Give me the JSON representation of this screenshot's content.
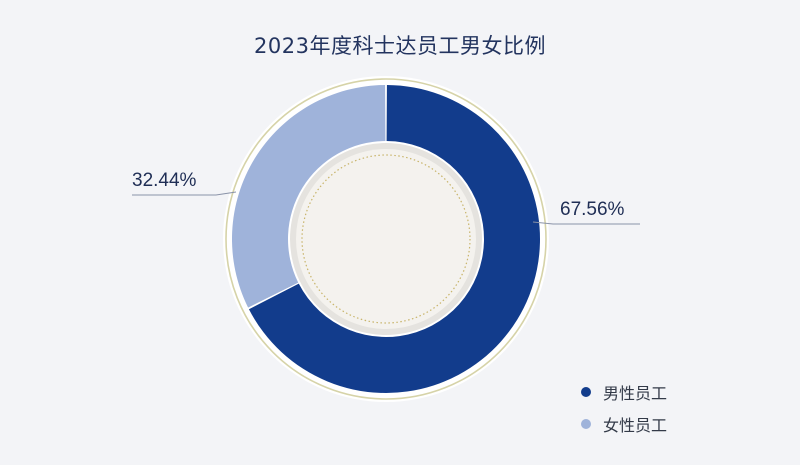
{
  "chart_data": {
    "type": "pie",
    "title": "2023年度科士达员工男女比例",
    "series": [
      {
        "name": "男性员工",
        "value": 67.56,
        "label": "67.56%",
        "color": "#123c8c"
      },
      {
        "name": "女性员工",
        "value": 32.44,
        "label": "32.44%",
        "color": "#9fb3da"
      }
    ],
    "legend_position": "bottom-right",
    "donut": true
  },
  "colors": {
    "background": "#f3f4f7",
    "outer_ring": "#d6d3a8",
    "center": "#f4f2ee",
    "inner_dots": "#c8b46a",
    "leader_line": "#8a93a8"
  }
}
